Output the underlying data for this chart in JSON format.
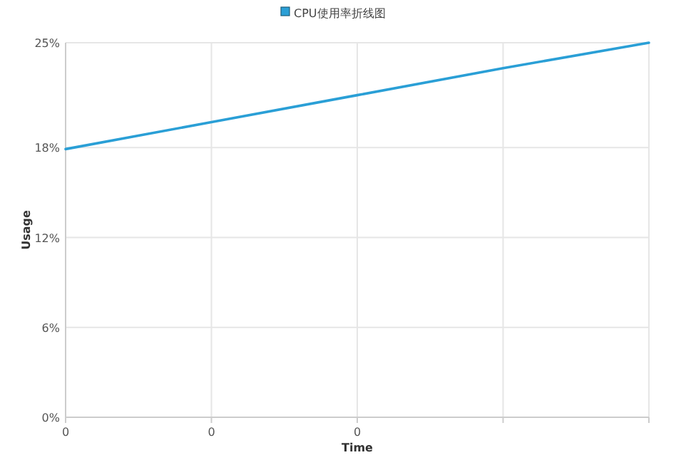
{
  "chart_data": {
    "type": "line",
    "xlabel": "Time",
    "ylabel": "Usage",
    "categories": [
      "0",
      "0",
      "0",
      null,
      null
    ],
    "series": [
      {
        "name": "CPU使用率折线图",
        "color": "#2a9fd6",
        "values": [
          17.9,
          19.7,
          21.5,
          23.3,
          25
        ]
      }
    ],
    "ylim": [
      0,
      25
    ],
    "yticks": [
      {
        "value": 0,
        "label": "0%"
      },
      {
        "value": 6,
        "label": "6%"
      },
      {
        "value": 12,
        "label": "12%"
      },
      {
        "value": 18,
        "label": "18%"
      },
      {
        "value": 25,
        "label": "25%"
      }
    ],
    "grid": true,
    "legend": "top",
    "marker": "none",
    "line_style": "solid"
  }
}
